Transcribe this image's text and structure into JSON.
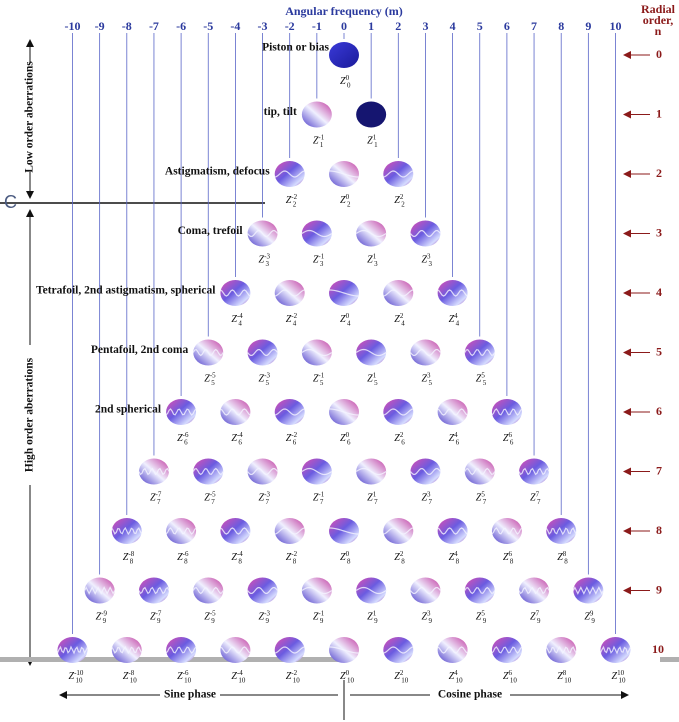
{
  "header": {
    "title": "Angular frequency (m)",
    "radial_title": [
      "Radial",
      "order,",
      "n"
    ]
  },
  "columns": [
    -10,
    -9,
    -8,
    -7,
    -6,
    -5,
    -4,
    -3,
    -2,
    -1,
    0,
    1,
    2,
    3,
    4,
    5,
    6,
    7,
    8,
    9,
    10
  ],
  "radial_orders": [
    0,
    1,
    2,
    3,
    4,
    5,
    6,
    7,
    8,
    9,
    10
  ],
  "groups": {
    "low": "Low order aberrations",
    "high": "High order aberrations"
  },
  "row_labels": [
    "Piston or bias",
    "tip, tilt",
    "Astigmatism, defocus",
    "Coma, trefoil",
    "Tetrafoil, 2nd astigmatism, spherical",
    "Pentafoil, 2nd coma",
    "2nd spherical"
  ],
  "zernike": {
    "symbol": "Z",
    "rows": [
      {
        "n": 0,
        "m": [
          0
        ]
      },
      {
        "n": 1,
        "m": [
          -1,
          1
        ]
      },
      {
        "n": 2,
        "m": [
          -2,
          0,
          2
        ]
      },
      {
        "n": 3,
        "m": [
          -3,
          -1,
          1,
          3
        ]
      },
      {
        "n": 4,
        "m": [
          -4,
          -2,
          0,
          2,
          4
        ]
      },
      {
        "n": 5,
        "m": [
          -5,
          -3,
          -1,
          1,
          3,
          5
        ]
      },
      {
        "n": 6,
        "m": [
          -6,
          -4,
          -2,
          0,
          2,
          4,
          6
        ]
      },
      {
        "n": 7,
        "m": [
          -7,
          -5,
          -3,
          -1,
          1,
          3,
          5,
          7
        ]
      },
      {
        "n": 8,
        "m": [
          -8,
          -6,
          -4,
          -2,
          0,
          2,
          4,
          6,
          8
        ]
      },
      {
        "n": 9,
        "m": [
          -9,
          -7,
          -5,
          -3,
          -1,
          1,
          3,
          5,
          7,
          9
        ]
      },
      {
        "n": 10,
        "m": [
          -10,
          -8,
          -6,
          -4,
          -2,
          0,
          2,
          4,
          6,
          8,
          10
        ]
      }
    ]
  },
  "phase": {
    "sine": "Sine phase",
    "cosine": "Cosine phase"
  },
  "marker": "C"
}
